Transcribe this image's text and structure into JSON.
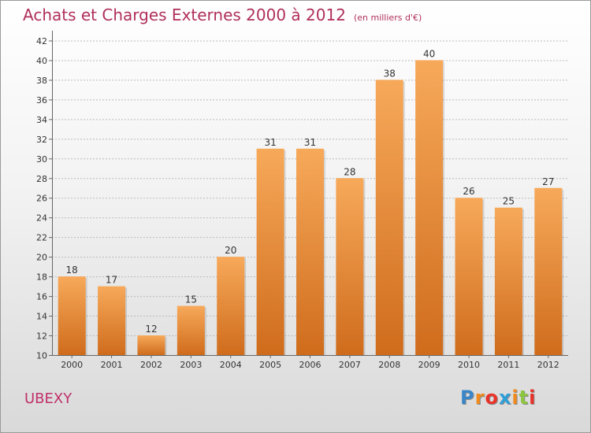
{
  "title": "Achats et Charges Externes 2000 à 2012",
  "unit": "(en milliers d'€)",
  "commune": "UBEXY",
  "logo": {
    "text": "Proxiti",
    "colors": [
      "#3a86c8",
      "#f08a1c",
      "#e8332a",
      "#2e9fd8",
      "#f08a1c",
      "#8cc63f",
      "#e8332a"
    ]
  },
  "colors": {
    "bar_top": "#f7a95a",
    "bar_bottom": "#cf6c1c",
    "title": "#b0305a",
    "grid": "#bbbbbb"
  },
  "chart_data": {
    "type": "bar",
    "categories": [
      "2000",
      "2001",
      "2002",
      "2003",
      "2004",
      "2005",
      "2006",
      "2007",
      "2008",
      "2009",
      "2010",
      "2011",
      "2012"
    ],
    "values": [
      18,
      17,
      12,
      15,
      20,
      31,
      31,
      28,
      38,
      40,
      26,
      25,
      27
    ],
    "ylim": [
      10,
      43
    ],
    "yticks": [
      10,
      12,
      14,
      16,
      18,
      20,
      22,
      24,
      26,
      28,
      30,
      32,
      34,
      36,
      38,
      40,
      42
    ],
    "grid": true,
    "xlabel": "",
    "ylabel": ""
  }
}
